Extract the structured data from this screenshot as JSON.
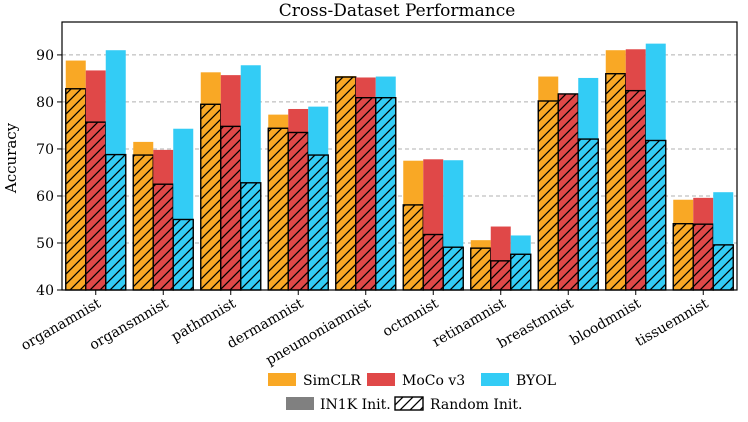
{
  "chart_data": {
    "type": "bar",
    "title": "Cross-Dataset Performance",
    "xlabel": "",
    "ylabel": "Accuracy",
    "ylim": [
      40,
      97
    ],
    "yticks": [
      40,
      50,
      60,
      70,
      80,
      90
    ],
    "grid": "horizontal dashed",
    "legend_position": "bottom-center",
    "categories": [
      "organamnist",
      "organsmnist",
      "pathmnist",
      "dermamnist",
      "pneumoniamnist",
      "octmnist",
      "retinamnist",
      "breastmnist",
      "bloodmnist",
      "tissuemnist"
    ],
    "series": [
      {
        "name": "SimCLR",
        "color": "#F9A825",
        "in1k_init": [
          88.8,
          71.5,
          86.3,
          77.3,
          85.5,
          67.5,
          50.6,
          85.4,
          91.0,
          59.2
        ],
        "random_init": [
          82.8,
          68.7,
          79.5,
          74.4,
          85.3,
          58.1,
          48.9,
          80.2,
          86.0,
          54.1
        ]
      },
      {
        "name": "MoCo v3",
        "color": "#E04848",
        "in1k_init": [
          86.7,
          69.8,
          85.7,
          78.5,
          85.2,
          67.8,
          53.5,
          80.6,
          91.2,
          59.6
        ],
        "random_init": [
          75.7,
          62.5,
          74.8,
          73.5,
          80.9,
          51.8,
          46.2,
          81.7,
          82.4,
          54.0
        ]
      },
      {
        "name": "BYOL",
        "color": "#33CCF5",
        "in1k_init": [
          91.0,
          74.3,
          87.8,
          79.0,
          85.4,
          67.6,
          51.6,
          85.1,
          92.4,
          60.8
        ],
        "random_init": [
          68.8,
          55.0,
          62.8,
          68.7,
          80.9,
          49.1,
          47.6,
          72.1,
          71.8,
          49.6
        ]
      }
    ],
    "legend_styles": [
      {
        "label": "IN1K Init.",
        "style": "solid-gray"
      },
      {
        "label": "Random Init.",
        "style": "hatched"
      }
    ]
  }
}
